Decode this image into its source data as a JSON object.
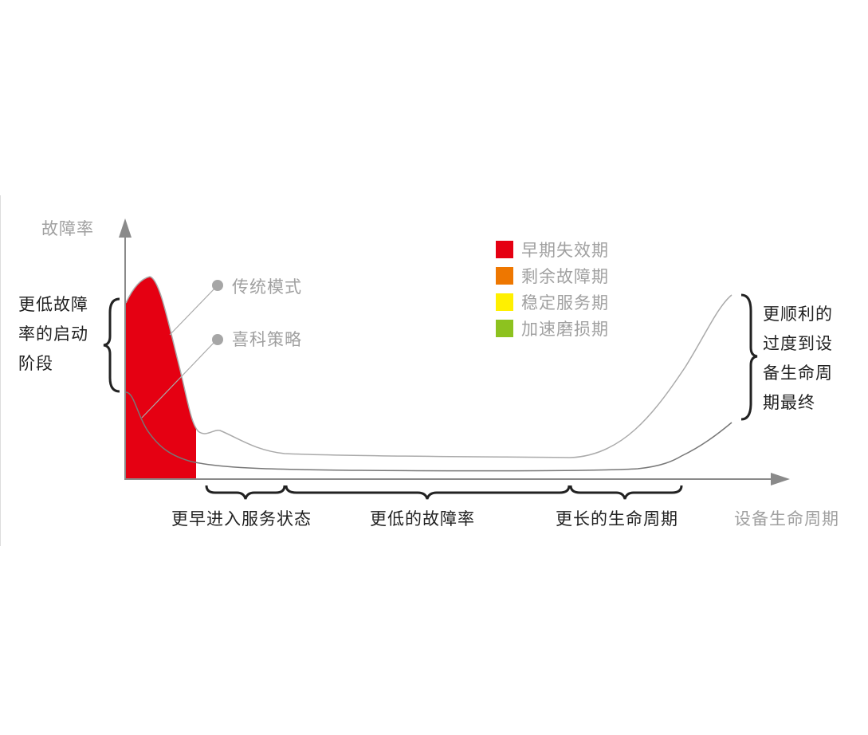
{
  "axes": {
    "y_label": "故障率",
    "x_label": "设备生命周期"
  },
  "legend": [
    {
      "label": "早期失效期",
      "color": "#e50012"
    },
    {
      "label": "剩余故障期",
      "color": "#ee7700"
    },
    {
      "label": "稳定服务期",
      "color": "#fff000"
    },
    {
      "label": "加速磨损期",
      "color": "#8dc21f"
    }
  ],
  "curves": {
    "traditional": "传统模式",
    "xike": "喜科策略"
  },
  "left_note": [
    "更低故障",
    "率的启动",
    "阶段"
  ],
  "right_note": [
    "更顺利的",
    "过度到设",
    "备生命周",
    "期最终"
  ],
  "bottom_notes": [
    "更早进入服务状态",
    "更低的故障率",
    "更长的生命周期"
  ]
}
